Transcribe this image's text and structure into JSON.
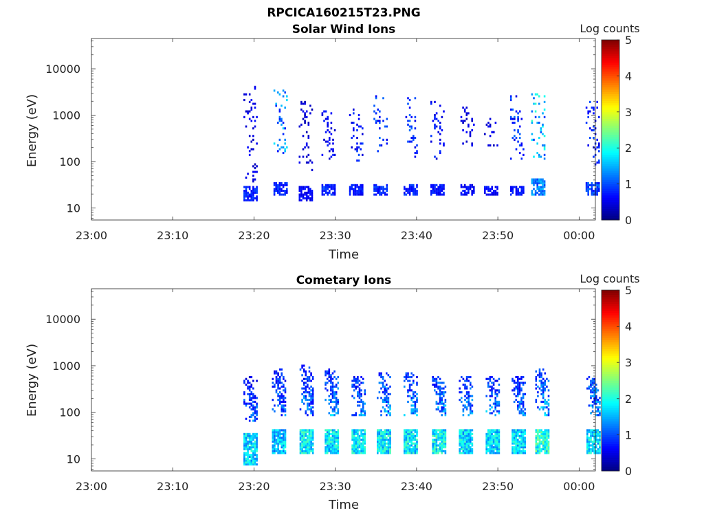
{
  "figure": {
    "title": "RPCICA160215T23.PNG"
  },
  "colors": {
    "jet": [
      "#00007f",
      "#0000ff",
      "#007fff",
      "#00ffff",
      "#7fff7f",
      "#ffff00",
      "#ff7f00",
      "#ff0000",
      "#7f0000"
    ]
  },
  "chart_data": [
    {
      "type": "heatmap",
      "title": "Solar Wind Ions",
      "xlabel": "Time",
      "ylabel": "Energy (eV)",
      "colorbar_label": "Log counts",
      "yscale": "log",
      "xlim": [
        0,
        62
      ],
      "ylim": [
        5.5,
        45000
      ],
      "clim": [
        0,
        5
      ],
      "x_ticks": [
        {
          "value": 0,
          "label": "23:00"
        },
        {
          "value": 10,
          "label": "23:10"
        },
        {
          "value": 20,
          "label": "23:20"
        },
        {
          "value": 30,
          "label": "23:30"
        },
        {
          "value": 40,
          "label": "23:40"
        },
        {
          "value": 50,
          "label": "23:50"
        },
        {
          "value": 60,
          "label": "00:00"
        }
      ],
      "y_ticks": [
        {
          "value": 10,
          "label": "10"
        },
        {
          "value": 100,
          "label": "100"
        },
        {
          "value": 1000,
          "label": "1000"
        },
        {
          "value": 10000,
          "label": "10000"
        }
      ],
      "cbar_ticks": [
        {
          "value": 0,
          "label": "0"
        },
        {
          "value": 1,
          "label": "1"
        },
        {
          "value": 2,
          "label": "2"
        },
        {
          "value": 3,
          "label": "3"
        },
        {
          "value": 4,
          "label": "4"
        },
        {
          "value": 5,
          "label": "5"
        }
      ],
      "bursts": [
        {
          "t": 18.7,
          "low": [
            13,
            28
          ],
          "high": [
            35,
            4000
          ],
          "low_max": 1.0,
          "high_max": 0.7
        },
        {
          "t": 22.4,
          "low": [
            17,
            35
          ],
          "high": [
            80,
            3500
          ],
          "low_max": 1.0,
          "high_max": 1.8
        },
        {
          "t": 25.5,
          "low": [
            13,
            28
          ],
          "high": [
            60,
            2000
          ],
          "low_max": 0.8,
          "high_max": 0.6
        },
        {
          "t": 28.3,
          "low": [
            17,
            30
          ],
          "high": [
            100,
            1200
          ],
          "low_max": 1.0,
          "high_max": 0.8
        },
        {
          "t": 31.7,
          "low": [
            17,
            30
          ],
          "high": [
            100,
            1500
          ],
          "low_max": 0.9,
          "high_max": 1.0
        },
        {
          "t": 34.7,
          "low": [
            17,
            30
          ],
          "high": [
            150,
            2500
          ],
          "low_max": 1.0,
          "high_max": 1.2
        },
        {
          "t": 38.4,
          "low": [
            17,
            30
          ],
          "high": [
            100,
            2500
          ],
          "low_max": 1.0,
          "high_max": 1.2
        },
        {
          "t": 41.7,
          "low": [
            17,
            30
          ],
          "high": [
            100,
            2000
          ],
          "low_max": 0.9,
          "high_max": 0.9
        },
        {
          "t": 45.4,
          "low": [
            17,
            30
          ],
          "high": [
            150,
            1500
          ],
          "low_max": 0.8,
          "high_max": 0.7
        },
        {
          "t": 48.3,
          "low": [
            17,
            28
          ],
          "high": [
            200,
            800
          ],
          "low_max": 0.8,
          "high_max": 0.6
        },
        {
          "t": 51.5,
          "low": [
            17,
            28
          ],
          "high": [
            100,
            2500
          ],
          "low_max": 0.9,
          "high_max": 1.2
        },
        {
          "t": 54.1,
          "low": [
            17,
            40
          ],
          "high": [
            80,
            3000
          ],
          "low_max": 1.6,
          "high_max": 2.2
        },
        {
          "t": 60.8,
          "low": [
            17,
            35
          ],
          "high": [
            80,
            2000
          ],
          "low_max": 1.2,
          "high_max": 1.0
        }
      ],
      "sparse": true
    },
    {
      "type": "heatmap",
      "title": "Cometary Ions",
      "xlabel": "Time",
      "ylabel": "Energy (eV)",
      "colorbar_label": "Log counts",
      "yscale": "log",
      "xlim": [
        0,
        62
      ],
      "ylim": [
        5.5,
        45000
      ],
      "clim": [
        0,
        5
      ],
      "x_ticks": [
        {
          "value": 0,
          "label": "23:00"
        },
        {
          "value": 10,
          "label": "23:10"
        },
        {
          "value": 20,
          "label": "23:20"
        },
        {
          "value": 30,
          "label": "23:30"
        },
        {
          "value": 40,
          "label": "23:40"
        },
        {
          "value": 50,
          "label": "23:50"
        },
        {
          "value": 60,
          "label": "00:00"
        }
      ],
      "y_ticks": [
        {
          "value": 10,
          "label": "10"
        },
        {
          "value": 100,
          "label": "100"
        },
        {
          "value": 1000,
          "label": "1000"
        },
        {
          "value": 10000,
          "label": "10000"
        }
      ],
      "cbar_ticks": [
        {
          "value": 0,
          "label": "0"
        },
        {
          "value": 1,
          "label": "1"
        },
        {
          "value": 2,
          "label": "2"
        },
        {
          "value": 3,
          "label": "3"
        },
        {
          "value": 4,
          "label": "4"
        },
        {
          "value": 5,
          "label": "5"
        }
      ],
      "bursts": [
        {
          "t": 18.7,
          "low": [
            7,
            35
          ],
          "high": [
            60,
            550
          ],
          "low_max": 2.2,
          "high_max": 1.5
        },
        {
          "t": 22.2,
          "low": [
            12,
            40
          ],
          "high": [
            80,
            800
          ],
          "low_max": 2.0,
          "high_max": 1.6
        },
        {
          "t": 25.6,
          "low": [
            12,
            40
          ],
          "high": [
            80,
            1000
          ],
          "low_max": 2.3,
          "high_max": 1.7
        },
        {
          "t": 28.7,
          "low": [
            12,
            40
          ],
          "high": [
            80,
            800
          ],
          "low_max": 2.3,
          "high_max": 1.9
        },
        {
          "t": 32.0,
          "low": [
            12,
            40
          ],
          "high": [
            80,
            600
          ],
          "low_max": 2.3,
          "high_max": 1.8
        },
        {
          "t": 35.1,
          "low": [
            12,
            40
          ],
          "high": [
            80,
            700
          ],
          "low_max": 2.3,
          "high_max": 1.9
        },
        {
          "t": 38.4,
          "low": [
            12,
            40
          ],
          "high": [
            80,
            700
          ],
          "low_max": 2.3,
          "high_max": 1.9
        },
        {
          "t": 41.9,
          "low": [
            12,
            40
          ],
          "high": [
            80,
            600
          ],
          "low_max": 2.4,
          "high_max": 1.9
        },
        {
          "t": 45.2,
          "low": [
            12,
            40
          ],
          "high": [
            80,
            600
          ],
          "low_max": 2.2,
          "high_max": 1.8
        },
        {
          "t": 48.5,
          "low": [
            12,
            40
          ],
          "high": [
            80,
            600
          ],
          "low_max": 2.2,
          "high_max": 1.8
        },
        {
          "t": 51.7,
          "low": [
            12,
            40
          ],
          "high": [
            80,
            600
          ],
          "low_max": 2.2,
          "high_max": 1.8
        },
        {
          "t": 54.6,
          "low": [
            12,
            40
          ],
          "high": [
            80,
            800
          ],
          "low_max": 2.6,
          "high_max": 2.0
        },
        {
          "t": 60.9,
          "low": [
            12,
            40
          ],
          "high": [
            80,
            600
          ],
          "low_max": 2.3,
          "high_max": 1.9
        }
      ],
      "sparse": false
    }
  ]
}
